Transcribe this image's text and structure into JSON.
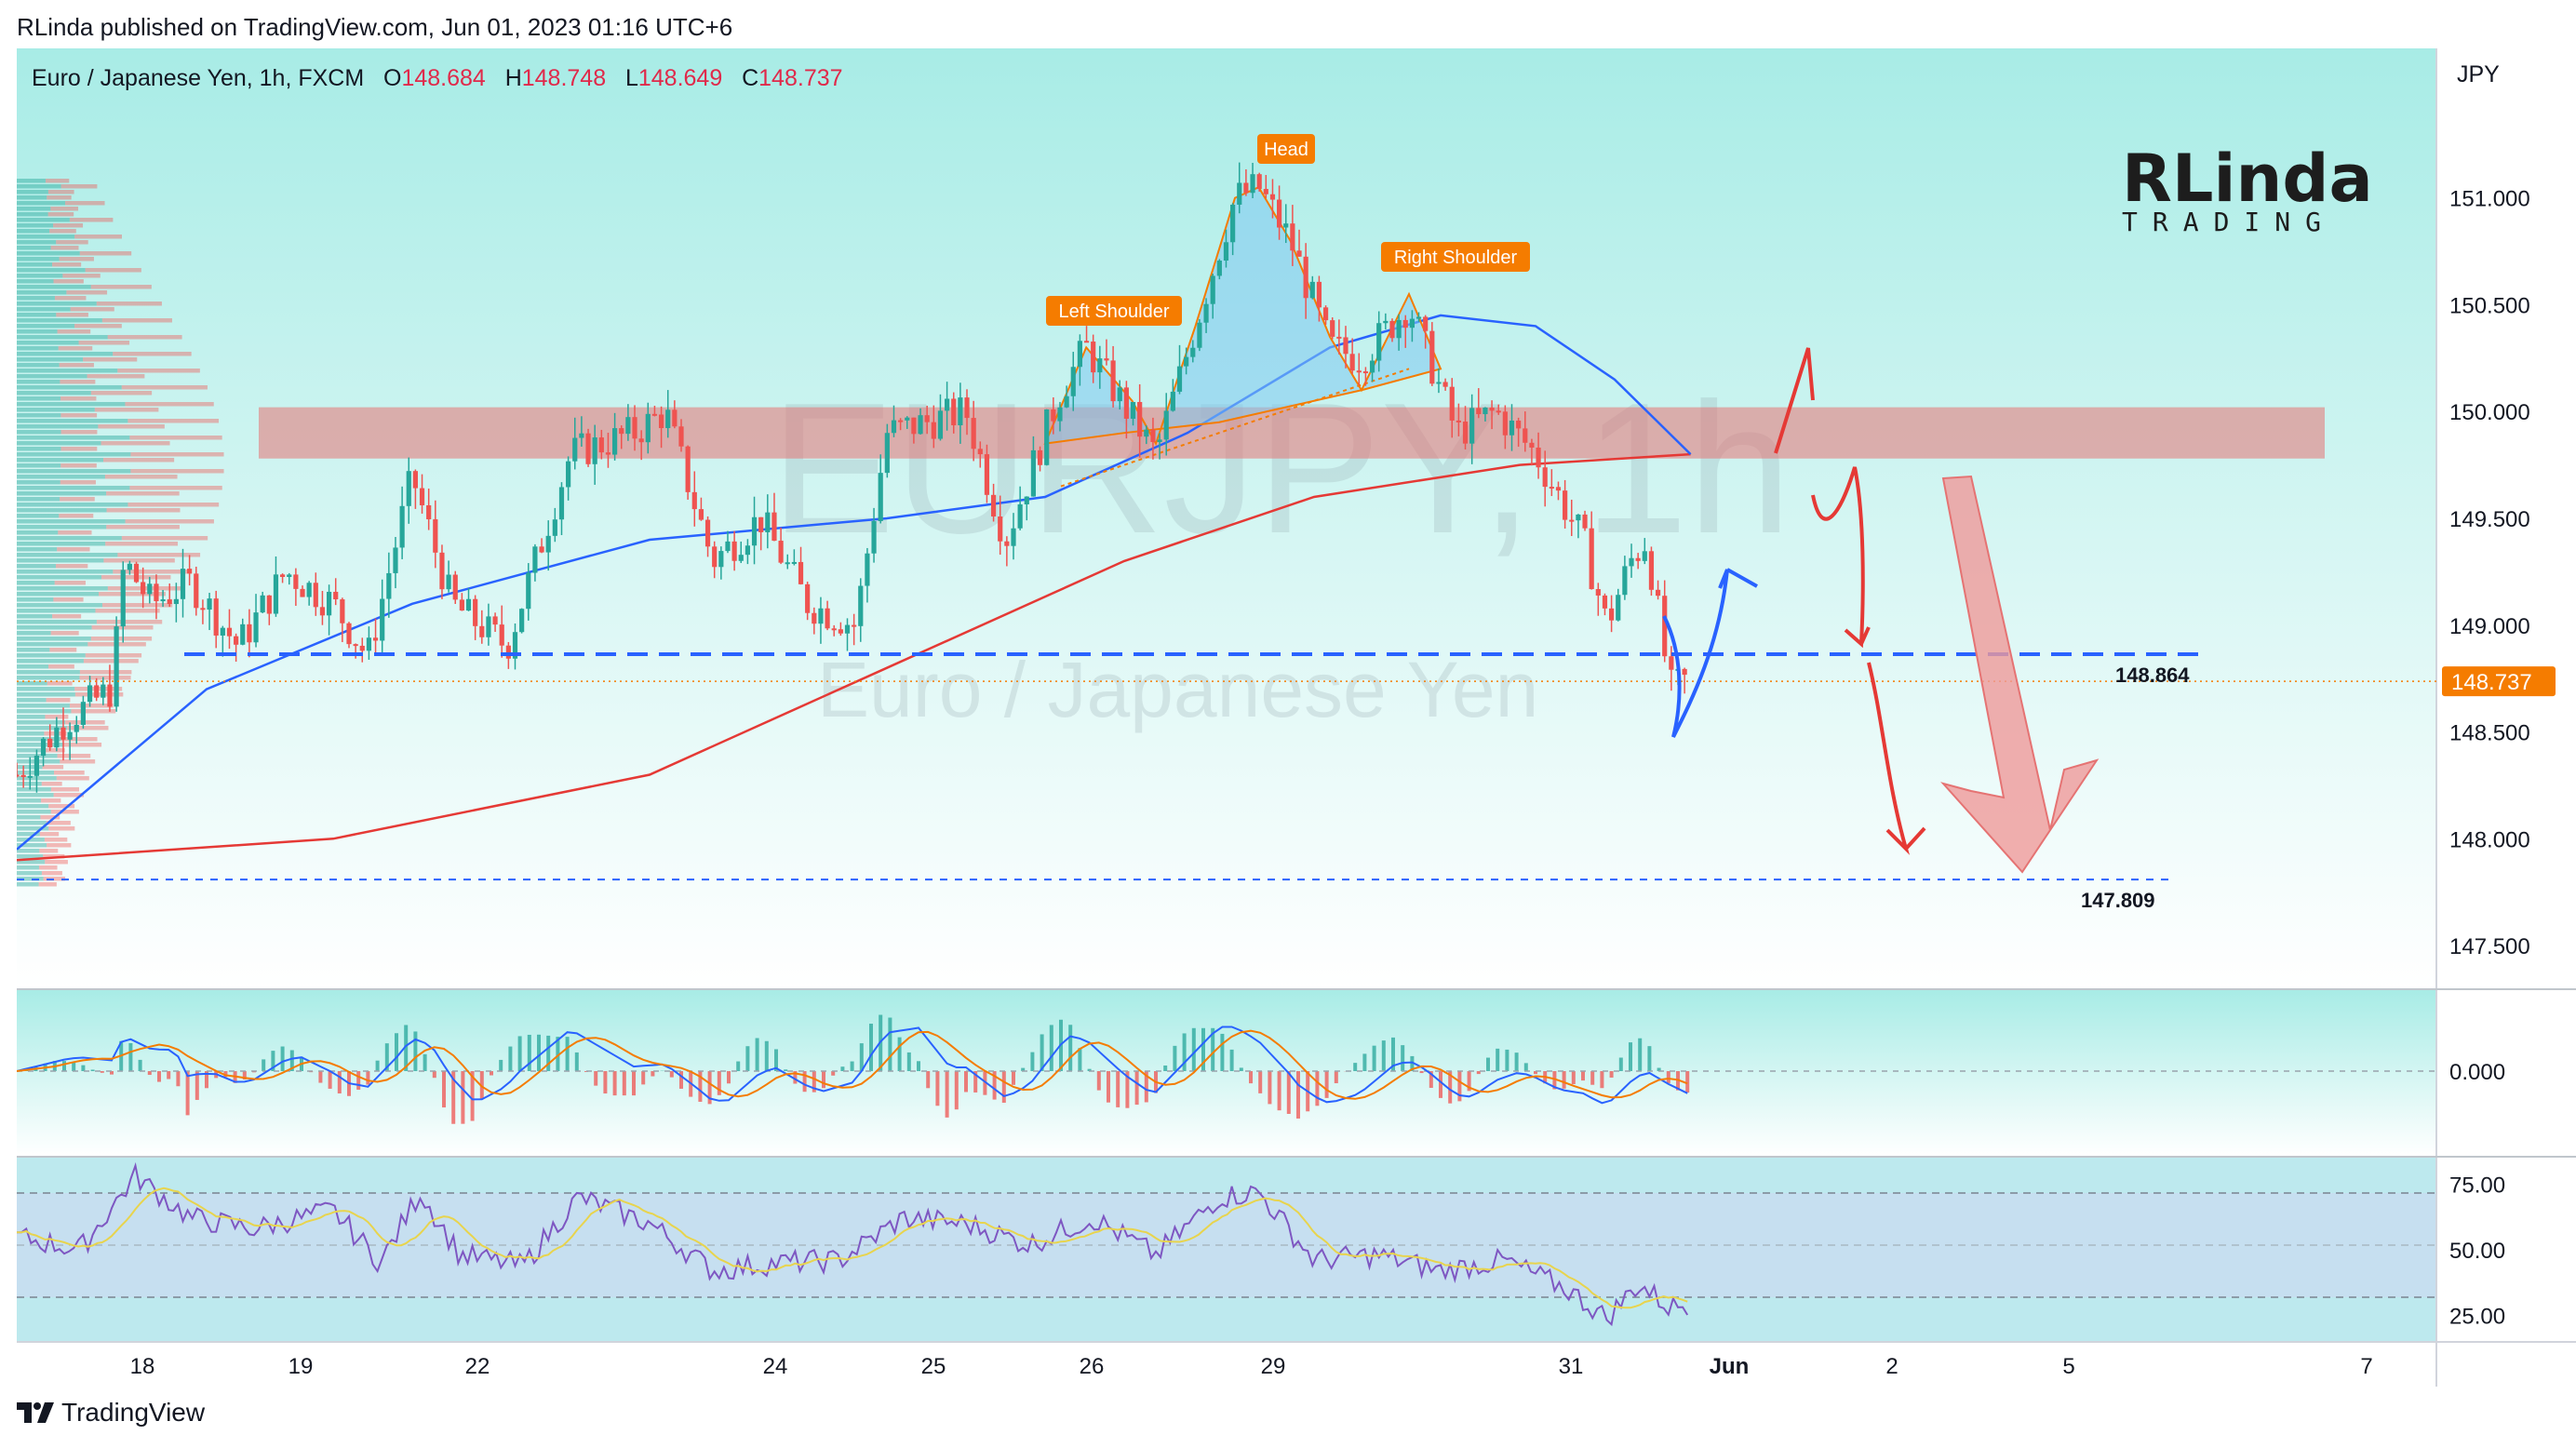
{
  "publisher": "RLinda published on TradingView.com, Jun 01, 2023 01:16 UTC+6",
  "symbol": {
    "name": "Euro / Japanese Yen, 1h, FXCM",
    "o_label": "O",
    "open": "148.684",
    "h_label": "H",
    "high": "148.748",
    "l_label": "L",
    "low": "148.649",
    "c_label": "C",
    "close": "148.737"
  },
  "currency": "JPY",
  "watermark": {
    "ticker": "EURJPY, 1h",
    "name": "Euro / Japanese Yen"
  },
  "logo": {
    "big": "RLinda",
    "small": "TRADING"
  },
  "footer": "TradingView",
  "colors": {
    "background_top": "#a8ece6",
    "background_bottom": "#ffffff",
    "bull": "#26a69a",
    "bear": "#ef5350",
    "ma_fast": "#2962ff",
    "ma_slow": "#e53935",
    "resistance_zone": "#e57373",
    "accent_orange": "#f57c00",
    "arrow_red": "#e53935",
    "arrow_blue": "#2962ff"
  },
  "chart_data": {
    "type": "line",
    "title": "Euro / Japanese Yen, 1h, FXCM",
    "x_ticks": [
      "18",
      "19",
      "22",
      "24",
      "25",
      "26",
      "29",
      "31",
      "Jun",
      "2",
      "5",
      "7"
    ],
    "price_axis": {
      "ticks": [
        "151.000",
        "150.500",
        "150.000",
        "149.500",
        "149.000",
        "148.500",
        "148.000",
        "147.500"
      ],
      "ylim": [
        147.3,
        151.7
      ]
    },
    "levels": [
      {
        "name": "support",
        "value": 148.864,
        "label": "148.864"
      },
      {
        "name": "target",
        "value": 147.809,
        "label": "147.809"
      },
      {
        "name": "last_price",
        "value": 148.737,
        "label": "148.737"
      }
    ],
    "resistance_zone": {
      "from": 149.78,
      "to": 150.02
    },
    "pattern": {
      "labels": [
        "Left Shoulder",
        "Head",
        "Right Shoulder"
      ]
    },
    "price_series": [
      {
        "x": 0,
        "y": 148.3
      },
      {
        "x": 30,
        "y": 148.55
      },
      {
        "x": 60,
        "y": 148.7
      },
      {
        "x": 68,
        "y": 149.3
      },
      {
        "x": 85,
        "y": 149.1
      },
      {
        "x": 110,
        "y": 149.2
      },
      {
        "x": 140,
        "y": 148.9
      },
      {
        "x": 170,
        "y": 149.25
      },
      {
        "x": 200,
        "y": 149.1
      },
      {
        "x": 222,
        "y": 148.85
      },
      {
        "x": 250,
        "y": 149.7
      },
      {
        "x": 275,
        "y": 149.1
      },
      {
        "x": 310,
        "y": 148.9
      },
      {
        "x": 350,
        "y": 149.8
      },
      {
        "x": 390,
        "y": 149.9
      },
      {
        "x": 410,
        "y": 150.0
      },
      {
        "x": 440,
        "y": 149.3
      },
      {
        "x": 470,
        "y": 149.5
      },
      {
        "x": 500,
        "y": 149.1
      },
      {
        "x": 530,
        "y": 149.0
      },
      {
        "x": 550,
        "y": 149.9
      },
      {
        "x": 600,
        "y": 150.0
      },
      {
        "x": 625,
        "y": 149.4
      },
      {
        "x": 660,
        "y": 150.1
      },
      {
        "x": 676,
        "y": 150.3
      },
      {
        "x": 720,
        "y": 149.8
      },
      {
        "x": 745,
        "y": 150.4
      },
      {
        "x": 770,
        "y": 151.0
      },
      {
        "x": 785,
        "y": 151.05
      },
      {
        "x": 805,
        "y": 150.8
      },
      {
        "x": 830,
        "y": 150.3
      },
      {
        "x": 850,
        "y": 150.25
      },
      {
        "x": 880,
        "y": 150.5
      },
      {
        "x": 910,
        "y": 149.9
      },
      {
        "x": 935,
        "y": 150.0
      },
      {
        "x": 960,
        "y": 149.8
      },
      {
        "x": 990,
        "y": 149.4
      },
      {
        "x": 1005,
        "y": 149.0
      },
      {
        "x": 1020,
        "y": 149.3
      },
      {
        "x": 1030,
        "y": 149.4
      },
      {
        "x": 1045,
        "y": 148.7
      },
      {
        "x": 1055,
        "y": 148.74
      }
    ],
    "ma_fast": [
      {
        "x": 0,
        "y": 147.95
      },
      {
        "x": 120,
        "y": 148.7
      },
      {
        "x": 250,
        "y": 149.1
      },
      {
        "x": 400,
        "y": 149.4
      },
      {
        "x": 550,
        "y": 149.5
      },
      {
        "x": 650,
        "y": 149.6
      },
      {
        "x": 740,
        "y": 149.9
      },
      {
        "x": 830,
        "y": 150.3
      },
      {
        "x": 900,
        "y": 150.45
      },
      {
        "x": 960,
        "y": 150.4
      },
      {
        "x": 1010,
        "y": 150.15
      },
      {
        "x": 1058,
        "y": 149.8
      }
    ],
    "ma_slow": [
      {
        "x": 0,
        "y": 147.9
      },
      {
        "x": 200,
        "y": 148.0
      },
      {
        "x": 400,
        "y": 148.3
      },
      {
        "x": 550,
        "y": 148.8
      },
      {
        "x": 700,
        "y": 149.3
      },
      {
        "x": 820,
        "y": 149.6
      },
      {
        "x": 950,
        "y": 149.75
      },
      {
        "x": 1058,
        "y": 149.8
      }
    ],
    "macd_axis": {
      "ticks": [
        "0.000"
      ]
    },
    "rsi_axis": {
      "ticks": [
        "75.00",
        "50.00",
        "25.00"
      ],
      "ylim": [
        15,
        85
      ]
    },
    "rsi_series": [
      {
        "x": 0,
        "y": 55
      },
      {
        "x": 40,
        "y": 50
      },
      {
        "x": 75,
        "y": 78
      },
      {
        "x": 110,
        "y": 62
      },
      {
        "x": 150,
        "y": 58
      },
      {
        "x": 200,
        "y": 65
      },
      {
        "x": 230,
        "y": 45
      },
      {
        "x": 255,
        "y": 72
      },
      {
        "x": 280,
        "y": 48
      },
      {
        "x": 320,
        "y": 44
      },
      {
        "x": 355,
        "y": 70
      },
      {
        "x": 400,
        "y": 60
      },
      {
        "x": 440,
        "y": 42
      },
      {
        "x": 480,
        "y": 45
      },
      {
        "x": 520,
        "y": 46
      },
      {
        "x": 560,
        "y": 62
      },
      {
        "x": 600,
        "y": 60
      },
      {
        "x": 640,
        "y": 52
      },
      {
        "x": 680,
        "y": 62
      },
      {
        "x": 720,
        "y": 48
      },
      {
        "x": 760,
        "y": 70
      },
      {
        "x": 785,
        "y": 72
      },
      {
        "x": 820,
        "y": 46
      },
      {
        "x": 860,
        "y": 48
      },
      {
        "x": 900,
        "y": 42
      },
      {
        "x": 940,
        "y": 46
      },
      {
        "x": 980,
        "y": 35
      },
      {
        "x": 1005,
        "y": 24
      },
      {
        "x": 1025,
        "y": 37
      },
      {
        "x": 1045,
        "y": 28
      },
      {
        "x": 1058,
        "y": 30
      }
    ]
  }
}
